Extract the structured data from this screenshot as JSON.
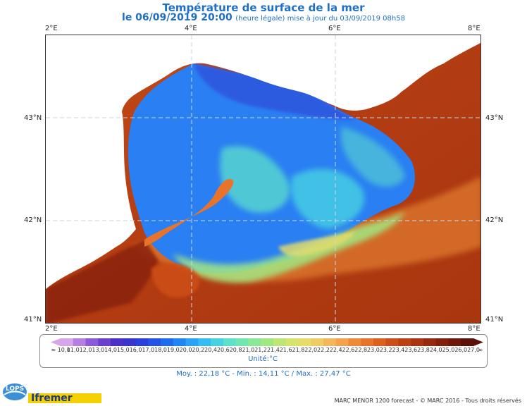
{
  "title": "Température de surface de la mer",
  "subtitle": {
    "date": "le 06/09/2019 20:00",
    "note": "(heure légale) mise à jour du 03/09/2019 08h58"
  },
  "axes": {
    "lon_labels": [
      "2°E",
      "4°E",
      "6°E",
      "8°E"
    ],
    "lat_labels": [
      "43°N",
      "42°N",
      "41°N"
    ]
  },
  "colorbar": {
    "min_label": "≈ 10,0",
    "labels": [
      "11,0",
      "12,0",
      "13,0",
      "14,0",
      "15,0",
      "16,0",
      "17,0",
      "18,0",
      "19,0",
      "20,0",
      "20,2",
      "20,4",
      "20,6",
      "20,8",
      "21,0",
      "21,2",
      "21,4",
      "21,6",
      "21,8",
      "22,0",
      "22,2",
      "22,4",
      "22,6",
      "22,8",
      "23,0",
      "23,2",
      "23,4",
      "23,6",
      "23,8",
      "24,0",
      "25,0",
      "26,0",
      "27,0"
    ],
    "max_label": "∞",
    "colors": [
      "#d7a6e8",
      "#b57fe0",
      "#8c5ad8",
      "#6a3fce",
      "#4b2fc7",
      "#3a33cf",
      "#2a3fdb",
      "#2354e6",
      "#1f6bef",
      "#2086f5",
      "#28a3f6",
      "#34bdf0",
      "#46d2e2",
      "#5de0cc",
      "#72e6b0",
      "#8ae896",
      "#a2e882",
      "#bde674",
      "#d4e46c",
      "#e6dc6a",
      "#f0cc66",
      "#f4b85c",
      "#f4a24c",
      "#f08a3a",
      "#e8742c",
      "#dc6020",
      "#cc4e18",
      "#bb4014",
      "#aa3412",
      "#962a10",
      "#82200e",
      "#6e180c",
      "#5a120a"
    ],
    "unit": "Unité:°C"
  },
  "stats": "Moy. : 22,18 °C  -  Min. : 14,11 °C / Max. : 27,47 °C",
  "copyright": "MARC MENOR 1200 forecast - © MARC 2016 - Tous droits réservés",
  "logos": {
    "lops": "LOPS",
    "ifremer": "Ifremer"
  }
}
